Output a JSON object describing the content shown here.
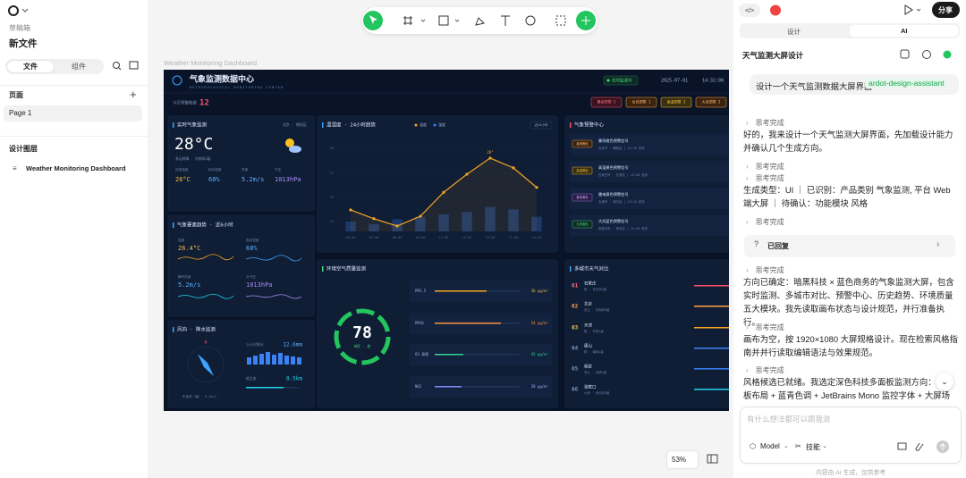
{
  "sidebar": {
    "drafts": "草稿箱",
    "file_name": "新文件",
    "tabs": [
      "文件",
      "组件"
    ],
    "pages_title": "页面",
    "pages": [
      "Page 1"
    ],
    "layers_title": "设计图层",
    "layers": [
      "Weather Monitoring Dashboard"
    ]
  },
  "canvas": {
    "frame_label": "Weather Monitoring Dashboard",
    "zoom": "53%"
  },
  "dashboard": {
    "title": "气象监测数据中心",
    "subtitle": "METEOROLOGICAL MONITORING CENTER",
    "status": "实时监测中",
    "date": "2025-07-01",
    "time": "14:32:08",
    "alert_count_label": "今日预警数据",
    "alert_count": 12,
    "alert_tags": [
      "暴雨预警 5",
      "台风预警 1",
      "高温预警 3",
      "大风预警 3"
    ],
    "realtime": {
      "title": "实时气象监测",
      "location": "北京 · 朝阳区",
      "temp": "28°C",
      "desc": "多云转晴 · 东南风3级",
      "metrics": [
        {
          "label": "体感温度",
          "value": "26°C"
        },
        {
          "label": "相对湿度",
          "value": "68%"
        },
        {
          "label": "风速",
          "value": "5.2m/s"
        },
        {
          "label": "气压",
          "value": "1013hPa"
        }
      ]
    },
    "trend": {
      "type": "line",
      "title": "温湿度 · 24小时趋势",
      "range": "近24小时",
      "categories": [
        "00:00",
        "03:00",
        "06:00",
        "09:00",
        "12:00",
        "15:00",
        "18:00",
        "21:00",
        "24:00"
      ],
      "series": [
        {
          "name": "温度",
          "color": "#f5a623",
          "values": [
            17.4,
            15.6,
            14.1,
            16.1,
            21,
            24.7,
            28,
            26,
            22
          ],
          "value_labels": [
            null,
            null,
            null,
            null,
            null,
            null,
            "28°",
            null,
            null
          ]
        },
        {
          "name": "湿度",
          "type": "bar",
          "color": "#3b82f6",
          "values": [
            15,
            14.5,
            15.5,
            16,
            16.5,
            17,
            18,
            17.5,
            16
          ]
        }
      ],
      "ylim": [
        13,
        30
      ],
      "yticks": [
        15,
        20,
        25,
        30
      ],
      "grid": true
    },
    "warnings": {
      "title": "气象预警中心",
      "items": [
        {
          "tag": "暴雨橙色",
          "title": "暴雨橙色预警信号",
          "meta": "北京市 · 朝阳区 | 14:20 发布"
        },
        {
          "tag": "高温黄色",
          "title": "高温黄色预警信号",
          "meta": "石家庄市 · 长安区 | 13:50 发布"
        },
        {
          "tag": "雷电黄色",
          "title": "雷电黄色预警信号",
          "meta": "天津市 · 和平区 | 13:10 发布"
        },
        {
          "tag": "大风蓝色",
          "title": "大风蓝色预警信号",
          "meta": "张家口市 · 桥东区 | 12:30 发布"
        }
      ]
    },
    "elements": {
      "title": "气象要素趋势 · 近6小时",
      "metrics": [
        {
          "label": "温度",
          "value": "26.4°C"
        },
        {
          "label": "相对湿度",
          "value": "68%"
        },
        {
          "label": "瞬时风速",
          "value": "5.2m/s"
        },
        {
          "label": "大气压",
          "value": "1013hPa"
        }
      ]
    },
    "aqi": {
      "title": "环境空气质量监测",
      "value": 78,
      "grade": "AQI · 良",
      "pollutants": [
        {
          "name": "PM2.5",
          "value": "36 μg/m³"
        },
        {
          "name": "PM10",
          "value": "54 μg/m³"
        },
        {
          "name": "O3 臭氧",
          "value": "45 μg/m³"
        },
        {
          "name": "NO2",
          "value": "28 μg/m³"
        }
      ]
    },
    "wind": {
      "title": "风向 · 降水监测",
      "direction": "N",
      "precip_label": "24小时降水",
      "precip": "12.6mm",
      "visibility_label": "能见度",
      "visibility": "8.5km",
      "wind_text": "东南风 3级 · 5.2m/s"
    },
    "cities": {
      "title": "多城市天气对比",
      "items": [
        {
          "rank": "01",
          "name": "石家庄",
          "meta": "晴 · 东北风2级"
        },
        {
          "rank": "02",
          "name": "北京",
          "meta": "多云 · 东南风3级"
        },
        {
          "rank": "03",
          "name": "天津",
          "meta": "阴 · 东风2级"
        },
        {
          "rank": "04",
          "name": "唐山",
          "meta": "晴 · 南风2级"
        },
        {
          "rank": "05",
          "name": "保定",
          "meta": "多云 · 北风1级"
        },
        {
          "rank": "06",
          "name": "张家口",
          "meta": "小雨 · 西北风4级"
        }
      ]
    }
  },
  "panel": {
    "share": "分享",
    "tabs": [
      "设计",
      "AI"
    ],
    "title": "天气监测大屏设计",
    "user_message": "设计一个天气监测数据大屏界面",
    "skill_tag": "ardot-design-assistant",
    "thinking": "思考完成",
    "replied": "已回复",
    "messages": [
      "好的，我来设计一个天气监测大屏界面，先加载设计能力并确认几个生成方向。",
      "生成类型：UI ｜ 已识别：产品类别 气象监测, 平台 Web端大屏 ｜ 待确认：功能模块 风格",
      "方向已确定：暗黑科技 × 蓝色商务的气象监测大屏，包含实时监测、多城市对比、预警中心、历史趋势、环境质量五大模块。我先读取画布状态与设计规范，并行准备执行。",
      "画布为空，按 1920×1080 大屏规格设计。现在检索风格指南并并行读取编辑语法与效果规范。",
      "风格候选已就绪。我选定深色科技多面板监测方向：暗黑板布局 + 蓝青色调 + JetBrains Mono 监控字体 + 大屏场景。"
    ],
    "input_placeholder": "有什么想法都可以跟我说",
    "model": "Model",
    "skills": "技能",
    "footer": "内容由 AI 生成，仅供参考"
  }
}
